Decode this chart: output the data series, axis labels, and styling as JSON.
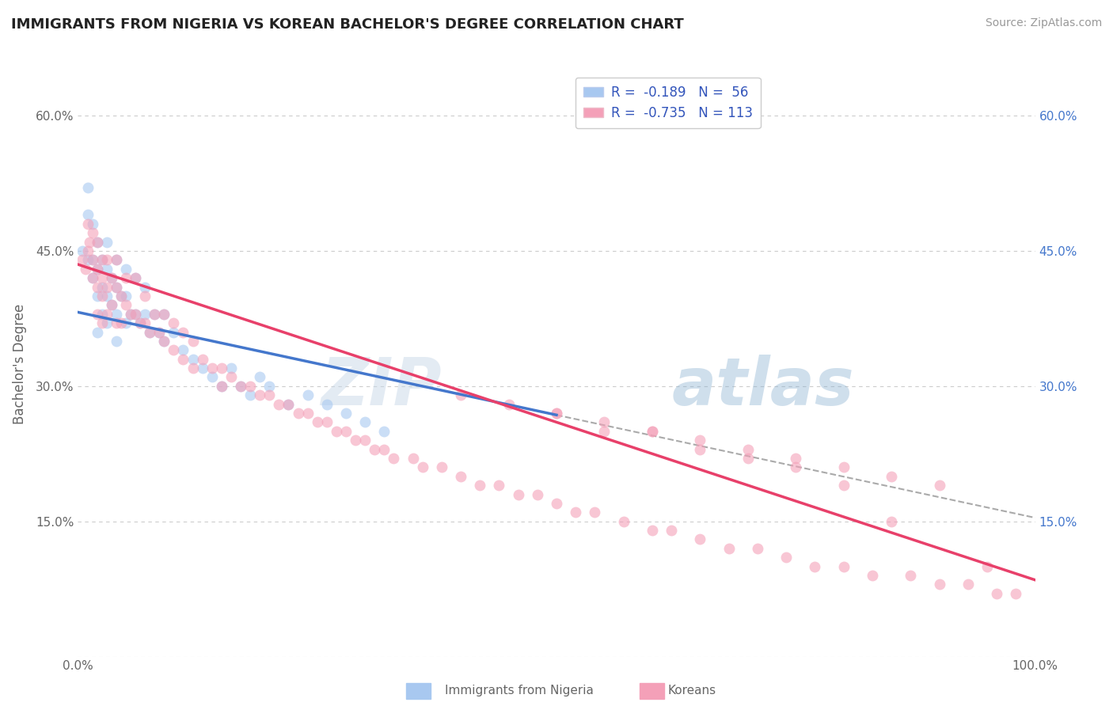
{
  "title": "IMMIGRANTS FROM NIGERIA VS KOREAN BACHELOR'S DEGREE CORRELATION CHART",
  "source": "Source: ZipAtlas.com",
  "ylabel": "Bachelor's Degree",
  "xlabel": "",
  "legend_label1": "Immigrants from Nigeria",
  "legend_label2": "Koreans",
  "r1": "-0.189",
  "n1": "56",
  "r2": "-0.735",
  "n2": "113",
  "xmin": 0.0,
  "xmax": 1.0,
  "ymin": 0.0,
  "ymax": 0.65,
  "yticks": [
    0.0,
    0.15,
    0.3,
    0.45,
    0.6
  ],
  "ytick_labels": [
    "",
    "15.0%",
    "30.0%",
    "45.0%",
    "60.0%"
  ],
  "xticks": [
    0.0,
    0.25,
    0.5,
    0.75,
    1.0
  ],
  "xtick_labels": [
    "0.0%",
    "",
    "",
    "",
    "100.0%"
  ],
  "color_nigeria": "#a8c8f0",
  "color_korea": "#f4a0b8",
  "line_color_nigeria": "#4477cc",
  "line_color_korea": "#e8406a",
  "watermark_zip": "ZIP",
  "watermark_atlas": "atlas",
  "background_color": "#ffffff",
  "grid_color": "#cccccc",
  "title_color": "#222222",
  "axis_label_color": "#666666",
  "right_axis_color": "#4477cc",
  "legend_text_color": "#3355bb",
  "scatter_size": 100,
  "scatter_alpha": 0.6,
  "nigeria_line_x0": 0.0,
  "nigeria_line_y0": 0.382,
  "nigeria_line_x1": 0.5,
  "nigeria_line_y1": 0.268,
  "korea_line_x0": 0.0,
  "korea_line_y0": 0.435,
  "korea_line_x1": 1.0,
  "korea_line_y1": 0.085,
  "nigeria_x": [
    0.005,
    0.01,
    0.01,
    0.01,
    0.015,
    0.015,
    0.015,
    0.02,
    0.02,
    0.02,
    0.02,
    0.025,
    0.025,
    0.025,
    0.03,
    0.03,
    0.03,
    0.03,
    0.035,
    0.035,
    0.04,
    0.04,
    0.04,
    0.04,
    0.045,
    0.05,
    0.05,
    0.05,
    0.055,
    0.06,
    0.06,
    0.065,
    0.07,
    0.07,
    0.075,
    0.08,
    0.085,
    0.09,
    0.09,
    0.1,
    0.11,
    0.12,
    0.13,
    0.14,
    0.15,
    0.16,
    0.17,
    0.18,
    0.19,
    0.2,
    0.22,
    0.24,
    0.26,
    0.28,
    0.3,
    0.32
  ],
  "nigeria_y": [
    0.45,
    0.52,
    0.49,
    0.44,
    0.48,
    0.44,
    0.42,
    0.46,
    0.43,
    0.4,
    0.36,
    0.44,
    0.41,
    0.38,
    0.46,
    0.43,
    0.4,
    0.37,
    0.42,
    0.39,
    0.44,
    0.41,
    0.38,
    0.35,
    0.4,
    0.43,
    0.4,
    0.37,
    0.38,
    0.42,
    0.38,
    0.37,
    0.41,
    0.38,
    0.36,
    0.38,
    0.36,
    0.38,
    0.35,
    0.36,
    0.34,
    0.33,
    0.32,
    0.31,
    0.3,
    0.32,
    0.3,
    0.29,
    0.31,
    0.3,
    0.28,
    0.29,
    0.28,
    0.27,
    0.26,
    0.25
  ],
  "korea_x": [
    0.005,
    0.008,
    0.01,
    0.01,
    0.012,
    0.015,
    0.015,
    0.015,
    0.02,
    0.02,
    0.02,
    0.02,
    0.025,
    0.025,
    0.025,
    0.025,
    0.03,
    0.03,
    0.03,
    0.035,
    0.035,
    0.04,
    0.04,
    0.04,
    0.045,
    0.045,
    0.05,
    0.05,
    0.055,
    0.06,
    0.06,
    0.065,
    0.07,
    0.07,
    0.075,
    0.08,
    0.085,
    0.09,
    0.09,
    0.1,
    0.1,
    0.11,
    0.11,
    0.12,
    0.12,
    0.13,
    0.14,
    0.15,
    0.15,
    0.16,
    0.17,
    0.18,
    0.19,
    0.2,
    0.21,
    0.22,
    0.23,
    0.24,
    0.25,
    0.26,
    0.27,
    0.28,
    0.29,
    0.3,
    0.31,
    0.32,
    0.33,
    0.35,
    0.36,
    0.38,
    0.4,
    0.42,
    0.44,
    0.46,
    0.48,
    0.5,
    0.52,
    0.54,
    0.57,
    0.6,
    0.62,
    0.65,
    0.68,
    0.71,
    0.74,
    0.77,
    0.8,
    0.83,
    0.87,
    0.9,
    0.93,
    0.96,
    0.98,
    0.5,
    0.55,
    0.6,
    0.65,
    0.7,
    0.75,
    0.8,
    0.85,
    0.9,
    0.95,
    0.4,
    0.45,
    0.5,
    0.55,
    0.6,
    0.65,
    0.7,
    0.75,
    0.8,
    0.85
  ],
  "korea_y": [
    0.44,
    0.43,
    0.48,
    0.45,
    0.46,
    0.47,
    0.44,
    0.42,
    0.46,
    0.43,
    0.41,
    0.38,
    0.44,
    0.42,
    0.4,
    0.37,
    0.44,
    0.41,
    0.38,
    0.42,
    0.39,
    0.44,
    0.41,
    0.37,
    0.4,
    0.37,
    0.42,
    0.39,
    0.38,
    0.42,
    0.38,
    0.37,
    0.4,
    0.37,
    0.36,
    0.38,
    0.36,
    0.38,
    0.35,
    0.37,
    0.34,
    0.36,
    0.33,
    0.35,
    0.32,
    0.33,
    0.32,
    0.32,
    0.3,
    0.31,
    0.3,
    0.3,
    0.29,
    0.29,
    0.28,
    0.28,
    0.27,
    0.27,
    0.26,
    0.26,
    0.25,
    0.25,
    0.24,
    0.24,
    0.23,
    0.23,
    0.22,
    0.22,
    0.21,
    0.21,
    0.2,
    0.19,
    0.19,
    0.18,
    0.18,
    0.17,
    0.16,
    0.16,
    0.15,
    0.14,
    0.14,
    0.13,
    0.12,
    0.12,
    0.11,
    0.1,
    0.1,
    0.09,
    0.09,
    0.08,
    0.08,
    0.07,
    0.07,
    0.27,
    0.25,
    0.25,
    0.23,
    0.23,
    0.22,
    0.21,
    0.2,
    0.19,
    0.1,
    0.29,
    0.28,
    0.27,
    0.26,
    0.25,
    0.24,
    0.22,
    0.21,
    0.19,
    0.15
  ]
}
